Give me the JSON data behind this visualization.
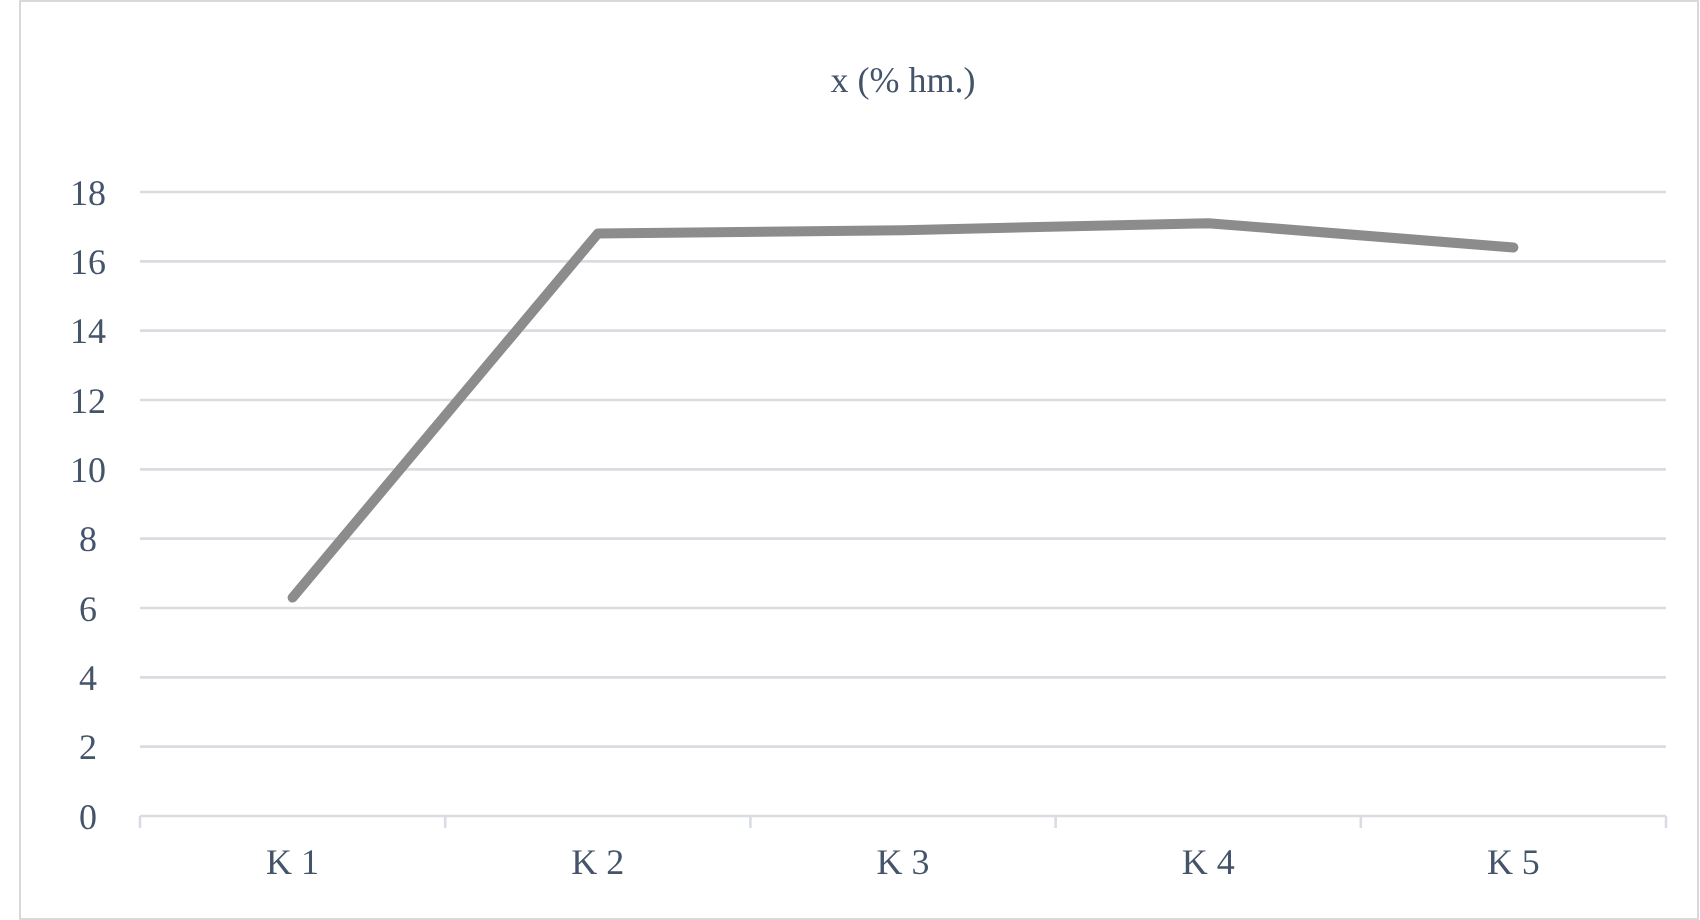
{
  "chart_data": {
    "type": "line",
    "title": "x (% hm.)",
    "categories": [
      "K 1",
      "K 2",
      "K 3",
      "K 4",
      "K 5"
    ],
    "series": [
      {
        "color": "#8c8c8c",
        "values": [
          6.3,
          16.8,
          16.9,
          17.1,
          16.4
        ]
      }
    ],
    "ylim": [
      0,
      18
    ],
    "yticks": [
      0,
      2,
      4,
      6,
      8,
      10,
      12,
      14,
      16,
      18
    ],
    "grid": "y",
    "marker": "none",
    "line_style": "solid"
  }
}
